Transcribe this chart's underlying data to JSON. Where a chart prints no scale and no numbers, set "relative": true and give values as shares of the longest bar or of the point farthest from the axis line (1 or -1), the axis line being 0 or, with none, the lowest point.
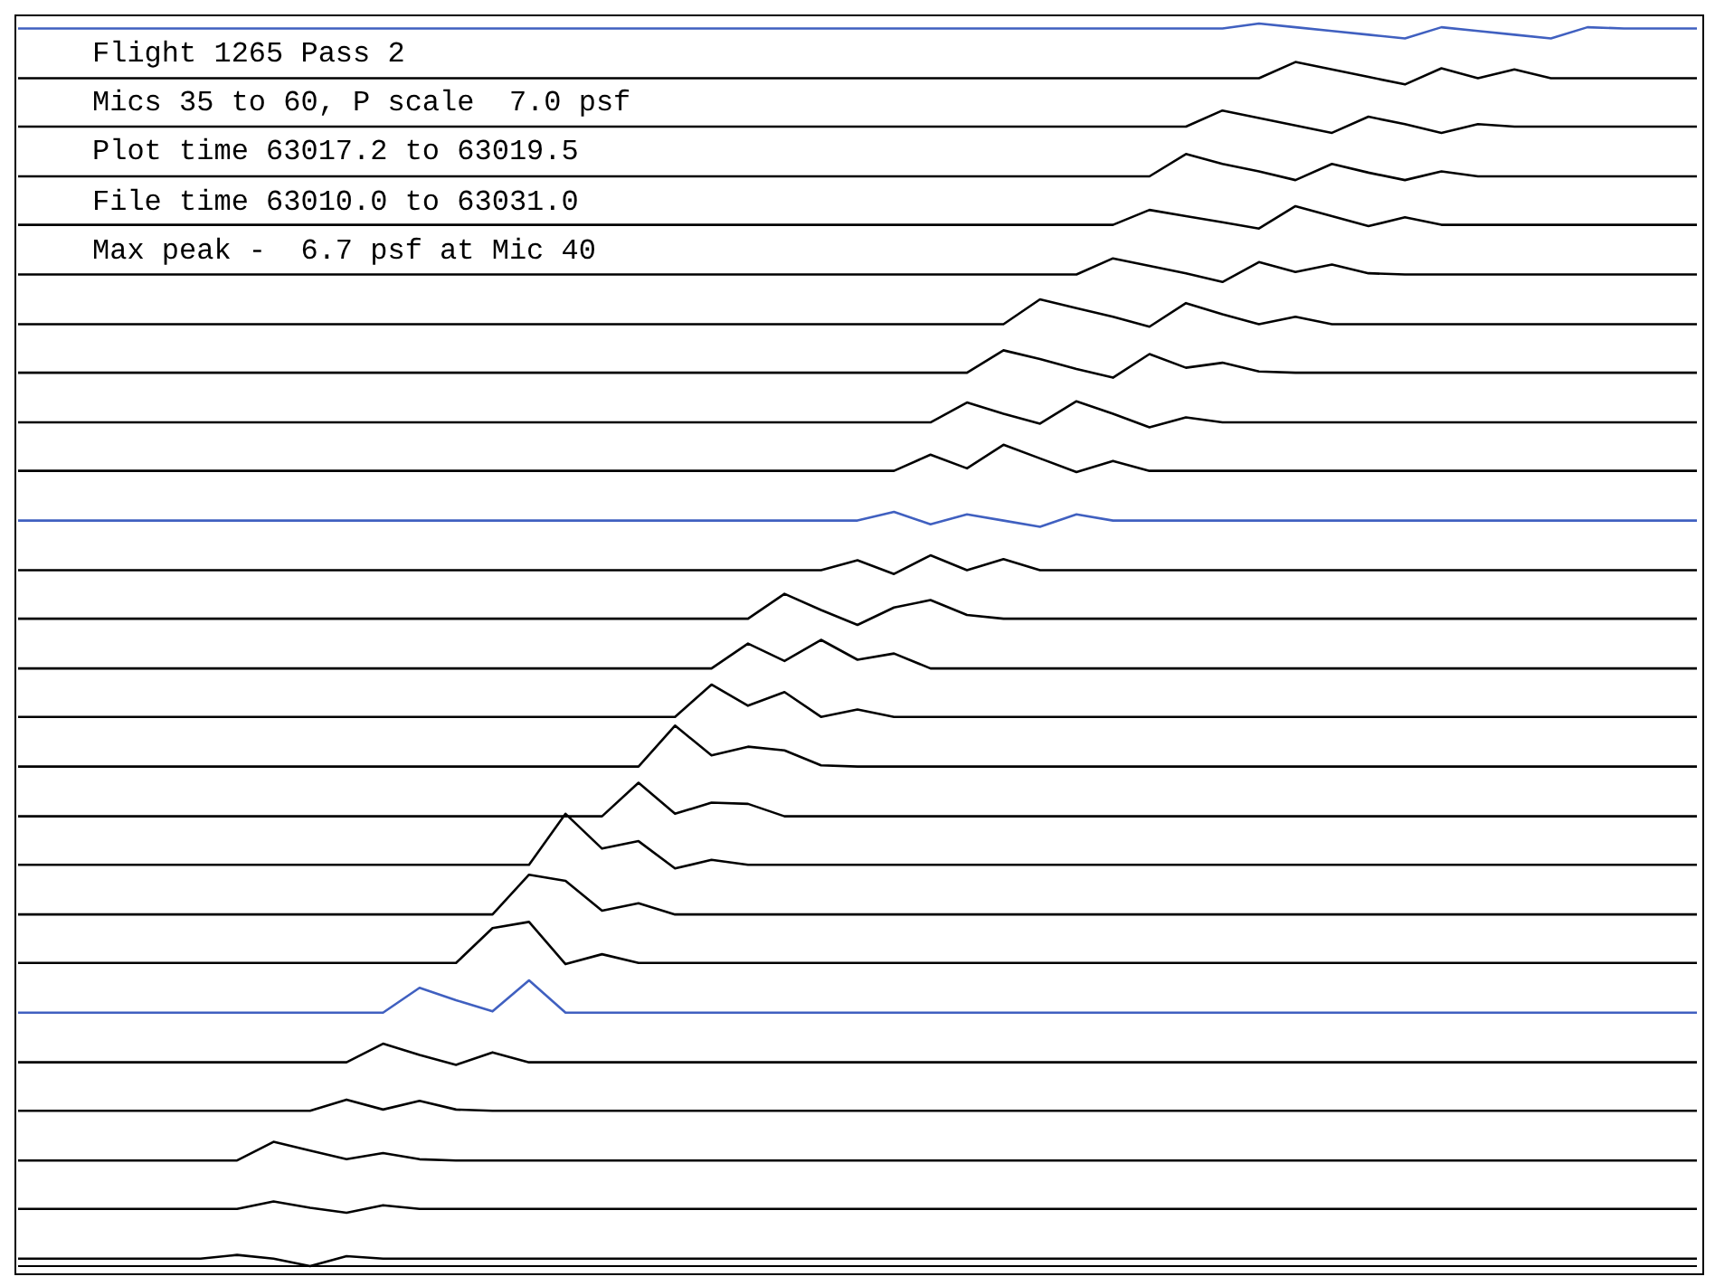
{
  "chart_data": {
    "type": "line",
    "relative": true,
    "marker": "none",
    "line_style": "solid",
    "categories": [
      null,
      null,
      null,
      null,
      null,
      null,
      null,
      null,
      null,
      null,
      null,
      null,
      null,
      null,
      null,
      null,
      null,
      null,
      null,
      null,
      null,
      null,
      null,
      null,
      null,
      null,
      null,
      null,
      null,
      null,
      null,
      null,
      null,
      null,
      null,
      null,
      null,
      null,
      null,
      null,
      null,
      null,
      null,
      null,
      null,
      null,
      null
    ],
    "annotations": [
      "Flight 1265 Pass 2",
      "Mics 35 to 60, P scale  7.0 psf",
      "Plot time 63017.2 to 63019.5",
      "File time 63010.0 to 63031.0",
      "Max peak -  6.7 psf at Mic 40"
    ],
    "series": [
      {
        "color": "#4060c0",
        "values": [
          0.996,
          0.996,
          0.996,
          0.996,
          0.996,
          0.996,
          0.996,
          0.996,
          0.996,
          0.996,
          0.996,
          0.996,
          0.996,
          0.996,
          0.996,
          0.996,
          0.996,
          0.996,
          0.996,
          0.996,
          0.996,
          0.996,
          0.996,
          0.996,
          0.996,
          0.996,
          0.996,
          0.996,
          0.996,
          0.996,
          0.996,
          0.996,
          0.996,
          0.996,
          1.0,
          0.997,
          0.994,
          0.991,
          0.988,
          0.997,
          0.994,
          0.991,
          0.988,
          0.997,
          0.996,
          0.996,
          0.996
        ]
      },
      {
        "color": "#000000",
        "values": [
          0.956,
          0.956,
          0.956,
          0.956,
          0.956,
          0.956,
          0.956,
          0.956,
          0.956,
          0.956,
          0.956,
          0.956,
          0.956,
          0.956,
          0.956,
          0.956,
          0.956,
          0.956,
          0.956,
          0.956,
          0.956,
          0.956,
          0.956,
          0.956,
          0.956,
          0.956,
          0.956,
          0.956,
          0.956,
          0.956,
          0.956,
          0.956,
          0.956,
          0.956,
          0.956,
          0.969,
          0.963,
          0.957,
          0.951,
          0.964,
          0.956,
          0.963,
          0.956,
          0.956,
          0.956,
          0.956,
          0.956
        ]
      },
      {
        "color": "#000000",
        "values": [
          0.917,
          0.917,
          0.917,
          0.917,
          0.917,
          0.917,
          0.917,
          0.917,
          0.917,
          0.917,
          0.917,
          0.917,
          0.917,
          0.917,
          0.917,
          0.917,
          0.917,
          0.917,
          0.917,
          0.917,
          0.917,
          0.917,
          0.917,
          0.917,
          0.917,
          0.917,
          0.917,
          0.917,
          0.917,
          0.917,
          0.917,
          0.917,
          0.917,
          0.93,
          0.924,
          0.918,
          0.912,
          0.925,
          0.919,
          0.912,
          0.919,
          0.917,
          0.917,
          0.917,
          0.917,
          0.917,
          0.917
        ]
      },
      {
        "color": "#000000",
        "values": [
          0.877,
          0.877,
          0.877,
          0.877,
          0.877,
          0.877,
          0.877,
          0.877,
          0.877,
          0.877,
          0.877,
          0.877,
          0.877,
          0.877,
          0.877,
          0.877,
          0.877,
          0.877,
          0.877,
          0.877,
          0.877,
          0.877,
          0.877,
          0.877,
          0.877,
          0.877,
          0.877,
          0.877,
          0.877,
          0.877,
          0.877,
          0.877,
          0.895,
          0.887,
          0.881,
          0.874,
          0.887,
          0.88,
          0.874,
          0.881,
          0.877,
          0.877,
          0.877,
          0.877,
          0.877,
          0.877,
          0.877
        ]
      },
      {
        "color": "#000000",
        "values": [
          0.838,
          0.838,
          0.838,
          0.838,
          0.838,
          0.838,
          0.838,
          0.838,
          0.838,
          0.838,
          0.838,
          0.838,
          0.838,
          0.838,
          0.838,
          0.838,
          0.838,
          0.838,
          0.838,
          0.838,
          0.838,
          0.838,
          0.838,
          0.838,
          0.838,
          0.838,
          0.838,
          0.838,
          0.838,
          0.838,
          0.838,
          0.85,
          0.845,
          0.84,
          0.835,
          0.853,
          0.845,
          0.837,
          0.844,
          0.838,
          0.838,
          0.838,
          0.838,
          0.838,
          0.838,
          0.838,
          0.838
        ]
      },
      {
        "color": "#000000",
        "values": [
          0.798,
          0.798,
          0.798,
          0.798,
          0.798,
          0.798,
          0.798,
          0.798,
          0.798,
          0.798,
          0.798,
          0.798,
          0.798,
          0.798,
          0.798,
          0.798,
          0.798,
          0.798,
          0.798,
          0.798,
          0.798,
          0.798,
          0.798,
          0.798,
          0.798,
          0.798,
          0.798,
          0.798,
          0.798,
          0.798,
          0.811,
          0.805,
          0.799,
          0.792,
          0.808,
          0.8,
          0.806,
          0.799,
          0.798,
          0.798,
          0.798,
          0.798,
          0.798,
          0.798,
          0.798,
          0.798,
          0.798
        ]
      },
      {
        "color": "#000000",
        "values": [
          0.758,
          0.758,
          0.758,
          0.758,
          0.758,
          0.758,
          0.758,
          0.758,
          0.758,
          0.758,
          0.758,
          0.758,
          0.758,
          0.758,
          0.758,
          0.758,
          0.758,
          0.758,
          0.758,
          0.758,
          0.758,
          0.758,
          0.758,
          0.758,
          0.758,
          0.758,
          0.758,
          0.758,
          0.778,
          0.771,
          0.764,
          0.756,
          0.775,
          0.766,
          0.758,
          0.764,
          0.758,
          0.758,
          0.758,
          0.758,
          0.758,
          0.758,
          0.758,
          0.758,
          0.758,
          0.758,
          0.758
        ]
      },
      {
        "color": "#000000",
        "values": [
          0.719,
          0.719,
          0.719,
          0.719,
          0.719,
          0.719,
          0.719,
          0.719,
          0.719,
          0.719,
          0.719,
          0.719,
          0.719,
          0.719,
          0.719,
          0.719,
          0.719,
          0.719,
          0.719,
          0.719,
          0.719,
          0.719,
          0.719,
          0.719,
          0.719,
          0.719,
          0.719,
          0.737,
          0.73,
          0.722,
          0.715,
          0.734,
          0.723,
          0.727,
          0.72,
          0.719,
          0.719,
          0.719,
          0.719,
          0.719,
          0.719,
          0.719,
          0.719,
          0.719,
          0.719,
          0.719,
          0.719
        ]
      },
      {
        "color": "#000000",
        "values": [
          0.679,
          0.679,
          0.679,
          0.679,
          0.679,
          0.679,
          0.679,
          0.679,
          0.679,
          0.679,
          0.679,
          0.679,
          0.679,
          0.679,
          0.679,
          0.679,
          0.679,
          0.679,
          0.679,
          0.679,
          0.679,
          0.679,
          0.679,
          0.679,
          0.679,
          0.679,
          0.695,
          0.686,
          0.678,
          0.696,
          0.686,
          0.675,
          0.683,
          0.679,
          0.679,
          0.679,
          0.679,
          0.679,
          0.679,
          0.679,
          0.679,
          0.679,
          0.679,
          0.679,
          0.679,
          0.679,
          0.679
        ]
      },
      {
        "color": "#000000",
        "values": [
          0.64,
          0.64,
          0.64,
          0.64,
          0.64,
          0.64,
          0.64,
          0.64,
          0.64,
          0.64,
          0.64,
          0.64,
          0.64,
          0.64,
          0.64,
          0.64,
          0.64,
          0.64,
          0.64,
          0.64,
          0.64,
          0.64,
          0.64,
          0.64,
          0.64,
          0.653,
          0.642,
          0.661,
          0.65,
          0.639,
          0.648,
          0.64,
          0.64,
          0.64,
          0.64,
          0.64,
          0.64,
          0.64,
          0.64,
          0.64,
          0.64,
          0.64,
          0.64,
          0.64,
          0.64,
          0.64,
          0.64
        ]
      },
      {
        "color": "#4060c0",
        "values": [
          0.6,
          0.6,
          0.6,
          0.6,
          0.6,
          0.6,
          0.6,
          0.6,
          0.6,
          0.6,
          0.6,
          0.6,
          0.6,
          0.6,
          0.6,
          0.6,
          0.6,
          0.6,
          0.6,
          0.6,
          0.6,
          0.6,
          0.6,
          0.6,
          0.607,
          0.597,
          0.605,
          0.6,
          0.595,
          0.605,
          0.6,
          0.6,
          0.6,
          0.6,
          0.6,
          0.6,
          0.6,
          0.6,
          0.6,
          0.6,
          0.6,
          0.6,
          0.6,
          0.6,
          0.6,
          0.6,
          0.6
        ]
      },
      {
        "color": "#000000",
        "values": [
          0.56,
          0.56,
          0.56,
          0.56,
          0.56,
          0.56,
          0.56,
          0.56,
          0.56,
          0.56,
          0.56,
          0.56,
          0.56,
          0.56,
          0.56,
          0.56,
          0.56,
          0.56,
          0.56,
          0.56,
          0.56,
          0.56,
          0.56,
          0.568,
          0.557,
          0.572,
          0.56,
          0.569,
          0.56,
          0.56,
          0.56,
          0.56,
          0.56,
          0.56,
          0.56,
          0.56,
          0.56,
          0.56,
          0.56,
          0.56,
          0.56,
          0.56,
          0.56,
          0.56,
          0.56,
          0.56,
          0.56
        ]
      },
      {
        "color": "#000000",
        "values": [
          0.521,
          0.521,
          0.521,
          0.521,
          0.521,
          0.521,
          0.521,
          0.521,
          0.521,
          0.521,
          0.521,
          0.521,
          0.521,
          0.521,
          0.521,
          0.521,
          0.521,
          0.521,
          0.521,
          0.521,
          0.521,
          0.541,
          0.528,
          0.516,
          0.53,
          0.536,
          0.524,
          0.521,
          0.521,
          0.521,
          0.521,
          0.521,
          0.521,
          0.521,
          0.521,
          0.521,
          0.521,
          0.521,
          0.521,
          0.521,
          0.521,
          0.521,
          0.521,
          0.521,
          0.521,
          0.521,
          0.521
        ]
      },
      {
        "color": "#000000",
        "values": [
          0.481,
          0.481,
          0.481,
          0.481,
          0.481,
          0.481,
          0.481,
          0.481,
          0.481,
          0.481,
          0.481,
          0.481,
          0.481,
          0.481,
          0.481,
          0.481,
          0.481,
          0.481,
          0.481,
          0.481,
          0.501,
          0.487,
          0.504,
          0.488,
          0.493,
          0.481,
          0.481,
          0.481,
          0.481,
          0.481,
          0.481,
          0.481,
          0.481,
          0.481,
          0.481,
          0.481,
          0.481,
          0.481,
          0.481,
          0.481,
          0.481,
          0.481,
          0.481,
          0.481,
          0.481,
          0.481,
          0.481
        ]
      },
      {
        "color": "#000000",
        "values": [
          0.442,
          0.442,
          0.442,
          0.442,
          0.442,
          0.442,
          0.442,
          0.442,
          0.442,
          0.442,
          0.442,
          0.442,
          0.442,
          0.442,
          0.442,
          0.442,
          0.442,
          0.442,
          0.442,
          0.468,
          0.451,
          0.462,
          0.442,
          0.448,
          0.442,
          0.442,
          0.442,
          0.442,
          0.442,
          0.442,
          0.442,
          0.442,
          0.442,
          0.442,
          0.442,
          0.442,
          0.442,
          0.442,
          0.442,
          0.442,
          0.442,
          0.442,
          0.442,
          0.442,
          0.442,
          0.442,
          0.442
        ]
      },
      {
        "color": "#000000",
        "values": [
          0.402,
          0.402,
          0.402,
          0.402,
          0.402,
          0.402,
          0.402,
          0.402,
          0.402,
          0.402,
          0.402,
          0.402,
          0.402,
          0.402,
          0.402,
          0.402,
          0.402,
          0.402,
          0.435,
          0.411,
          0.418,
          0.415,
          0.403,
          0.402,
          0.402,
          0.402,
          0.402,
          0.402,
          0.402,
          0.402,
          0.402,
          0.402,
          0.402,
          0.402,
          0.402,
          0.402,
          0.402,
          0.402,
          0.402,
          0.402,
          0.402,
          0.402,
          0.402,
          0.402,
          0.402,
          0.402,
          0.402
        ]
      },
      {
        "color": "#000000",
        "values": [
          0.362,
          0.362,
          0.362,
          0.362,
          0.362,
          0.362,
          0.362,
          0.362,
          0.362,
          0.362,
          0.362,
          0.362,
          0.362,
          0.362,
          0.362,
          0.362,
          0.362,
          0.389,
          0.364,
          0.373,
          0.372,
          0.362,
          0.362,
          0.362,
          0.362,
          0.362,
          0.362,
          0.362,
          0.362,
          0.362,
          0.362,
          0.362,
          0.362,
          0.362,
          0.362,
          0.362,
          0.362,
          0.362,
          0.362,
          0.362,
          0.362,
          0.362,
          0.362,
          0.362,
          0.362,
          0.362,
          0.362
        ]
      },
      {
        "color": "#000000",
        "values": [
          0.323,
          0.323,
          0.323,
          0.323,
          0.323,
          0.323,
          0.323,
          0.323,
          0.323,
          0.323,
          0.323,
          0.323,
          0.323,
          0.323,
          0.323,
          0.364,
          0.336,
          0.342,
          0.32,
          0.327,
          0.323,
          0.323,
          0.323,
          0.323,
          0.323,
          0.323,
          0.323,
          0.323,
          0.323,
          0.323,
          0.323,
          0.323,
          0.323,
          0.323,
          0.323,
          0.323,
          0.323,
          0.323,
          0.323,
          0.323,
          0.323,
          0.323,
          0.323,
          0.323,
          0.323,
          0.323,
          0.323
        ]
      },
      {
        "color": "#000000",
        "values": [
          0.283,
          0.283,
          0.283,
          0.283,
          0.283,
          0.283,
          0.283,
          0.283,
          0.283,
          0.283,
          0.283,
          0.283,
          0.283,
          0.283,
          0.315,
          0.31,
          0.286,
          0.292,
          0.283,
          0.283,
          0.283,
          0.283,
          0.283,
          0.283,
          0.283,
          0.283,
          0.283,
          0.283,
          0.283,
          0.283,
          0.283,
          0.283,
          0.283,
          0.283,
          0.283,
          0.283,
          0.283,
          0.283,
          0.283,
          0.283,
          0.283,
          0.283,
          0.283,
          0.283,
          0.283,
          0.283,
          0.283
        ]
      },
      {
        "color": "#000000",
        "values": [
          0.244,
          0.244,
          0.244,
          0.244,
          0.244,
          0.244,
          0.244,
          0.244,
          0.244,
          0.244,
          0.244,
          0.244,
          0.244,
          0.272,
          0.277,
          0.243,
          0.251,
          0.244,
          0.244,
          0.244,
          0.244,
          0.244,
          0.244,
          0.244,
          0.244,
          0.244,
          0.244,
          0.244,
          0.244,
          0.244,
          0.244,
          0.244,
          0.244,
          0.244,
          0.244,
          0.244,
          0.244,
          0.244,
          0.244,
          0.244,
          0.244,
          0.244,
          0.244,
          0.244,
          0.244,
          0.244,
          0.244
        ]
      },
      {
        "color": "#4060c0",
        "values": [
          0.204,
          0.204,
          0.204,
          0.204,
          0.204,
          0.204,
          0.204,
          0.204,
          0.204,
          0.204,
          0.204,
          0.224,
          0.214,
          0.205,
          0.23,
          0.204,
          0.204,
          0.204,
          0.204,
          0.204,
          0.204,
          0.204,
          0.204,
          0.204,
          0.204,
          0.204,
          0.204,
          0.204,
          0.204,
          0.204,
          0.204,
          0.204,
          0.204,
          0.204,
          0.204,
          0.204,
          0.204,
          0.204,
          0.204,
          0.204,
          0.204,
          0.204,
          0.204,
          0.204,
          0.204,
          0.204,
          0.204
        ]
      },
      {
        "color": "#000000",
        "values": [
          0.164,
          0.164,
          0.164,
          0.164,
          0.164,
          0.164,
          0.164,
          0.164,
          0.164,
          0.164,
          0.179,
          0.17,
          0.162,
          0.172,
          0.164,
          0.164,
          0.164,
          0.164,
          0.164,
          0.164,
          0.164,
          0.164,
          0.164,
          0.164,
          0.164,
          0.164,
          0.164,
          0.164,
          0.164,
          0.164,
          0.164,
          0.164,
          0.164,
          0.164,
          0.164,
          0.164,
          0.164,
          0.164,
          0.164,
          0.164,
          0.164,
          0.164,
          0.164,
          0.164,
          0.164,
          0.164,
          0.164
        ]
      },
      {
        "color": "#000000",
        "values": [
          0.125,
          0.125,
          0.125,
          0.125,
          0.125,
          0.125,
          0.125,
          0.125,
          0.125,
          0.134,
          0.126,
          0.133,
          0.126,
          0.125,
          0.125,
          0.125,
          0.125,
          0.125,
          0.125,
          0.125,
          0.125,
          0.125,
          0.125,
          0.125,
          0.125,
          0.125,
          0.125,
          0.125,
          0.125,
          0.125,
          0.125,
          0.125,
          0.125,
          0.125,
          0.125,
          0.125,
          0.125,
          0.125,
          0.125,
          0.125,
          0.125,
          0.125,
          0.125,
          0.125,
          0.125,
          0.125,
          0.125
        ]
      },
      {
        "color": "#000000",
        "values": [
          0.085,
          0.085,
          0.085,
          0.085,
          0.085,
          0.085,
          0.085,
          0.1,
          0.093,
          0.086,
          0.091,
          0.086,
          0.085,
          0.085,
          0.085,
          0.085,
          0.085,
          0.085,
          0.085,
          0.085,
          0.085,
          0.085,
          0.085,
          0.085,
          0.085,
          0.085,
          0.085,
          0.085,
          0.085,
          0.085,
          0.085,
          0.085,
          0.085,
          0.085,
          0.085,
          0.085,
          0.085,
          0.085,
          0.085,
          0.085,
          0.085,
          0.085,
          0.085,
          0.085,
          0.085,
          0.085,
          0.085
        ]
      },
      {
        "color": "#000000",
        "values": [
          0.046,
          0.046,
          0.046,
          0.046,
          0.046,
          0.046,
          0.046,
          0.052,
          0.047,
          0.043,
          0.049,
          0.046,
          0.046,
          0.046,
          0.046,
          0.046,
          0.046,
          0.046,
          0.046,
          0.046,
          0.046,
          0.046,
          0.046,
          0.046,
          0.046,
          0.046,
          0.046,
          0.046,
          0.046,
          0.046,
          0.046,
          0.046,
          0.046,
          0.046,
          0.046,
          0.046,
          0.046,
          0.046,
          0.046,
          0.046,
          0.046,
          0.046,
          0.046,
          0.046,
          0.046,
          0.046,
          0.046
        ]
      },
      {
        "color": "#000000",
        "values": [
          0.006,
          0.006,
          0.006,
          0.006,
          0.006,
          0.006,
          0.009,
          0.006,
          0.0,
          0.008,
          0.006,
          0.006,
          0.006,
          0.006,
          0.006,
          0.006,
          0.006,
          0.006,
          0.006,
          0.006,
          0.006,
          0.006,
          0.006,
          0.006,
          0.006,
          0.006,
          0.006,
          0.006,
          0.006,
          0.006,
          0.006,
          0.006,
          0.006,
          0.006,
          0.006,
          0.006,
          0.006,
          0.006,
          0.006,
          0.006,
          0.006,
          0.006,
          0.006,
          0.006,
          0.006,
          0.006,
          0.006
        ]
      }
    ]
  }
}
